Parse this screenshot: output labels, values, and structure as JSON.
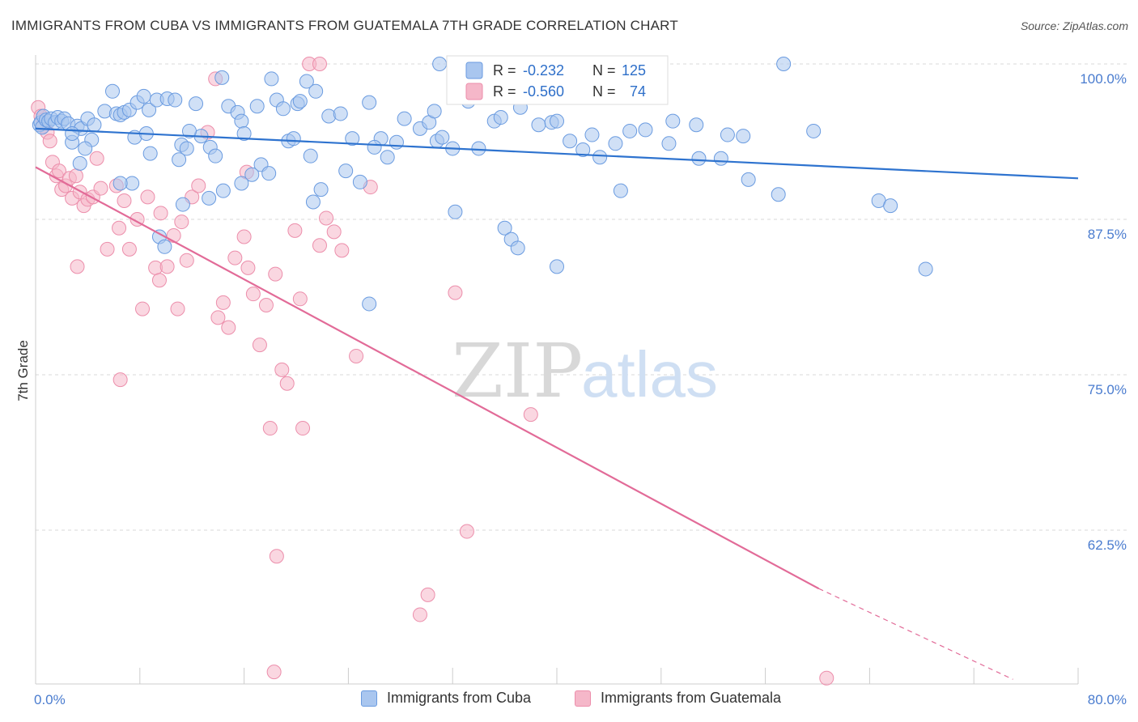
{
  "header": {
    "title": "IMMIGRANTS FROM CUBA VS IMMIGRANTS FROM GUATEMALA 7TH GRADE CORRELATION CHART",
    "source": "Source: ZipAtlas.com"
  },
  "watermark": {
    "part1": "ZIP",
    "part2": "atlas"
  },
  "colors": {
    "blue_fill": "#a9c6ef",
    "blue_stroke": "#6a9be0",
    "blue_line": "#2e73cf",
    "pink_fill": "#f5b7c9",
    "pink_stroke": "#ec8eab",
    "pink_line": "#e26b98",
    "grid": "#d9d9d9",
    "label_blue": "#4a7ccf"
  },
  "legend": {
    "rows": [
      {
        "r_label": "R =",
        "r_value": "-0.232",
        "n_label": "N =",
        "n_value": "125"
      },
      {
        "r_label": "R =",
        "r_value": "-0.560",
        "n_label": "N =",
        "n_value": "74"
      }
    ]
  },
  "chart_data": {
    "type": "scatter",
    "title": "IMMIGRANTS FROM CUBA VS IMMIGRANTS FROM GUATEMALA 7TH GRADE CORRELATION CHART",
    "xlabel": "",
    "ylabel": "7th Grade",
    "xlim": [
      0,
      80
    ],
    "ylim": [
      50.5,
      101
    ],
    "x_tick_labels": [
      "0.0%",
      "80.0%"
    ],
    "y_ticks": [
      62.5,
      75.0,
      87.5,
      100.0
    ],
    "y_tick_labels": [
      "62.5%",
      "75.0%",
      "87.5%",
      "100.0%"
    ],
    "grid": "horizontal dashed",
    "legend_position": "top-center",
    "series": [
      {
        "name": "Immigrants from Cuba",
        "R": -0.232,
        "N": 125,
        "trend": {
          "x": [
            0,
            80
          ],
          "y": [
            94.8,
            90.8
          ]
        },
        "points": [
          [
            0.3,
            95.1
          ],
          [
            0.4,
            95.3
          ],
          [
            0.5,
            94.9
          ],
          [
            0.6,
            95.8
          ],
          [
            0.8,
            95.5
          ],
          [
            1.0,
            95.4
          ],
          [
            1.2,
            95.6
          ],
          [
            1.5,
            95.3
          ],
          [
            1.7,
            95.7
          ],
          [
            2.0,
            95.4
          ],
          [
            2.2,
            95.6
          ],
          [
            2.5,
            95.2
          ],
          [
            2.8,
            93.7
          ],
          [
            3.2,
            95.0
          ],
          [
            3.5,
            94.8
          ],
          [
            4.0,
            95.6
          ],
          [
            4.3,
            93.9
          ],
          [
            3.8,
            93.2
          ],
          [
            3.4,
            92.0
          ],
          [
            4.5,
            95.1
          ],
          [
            5.3,
            96.2
          ],
          [
            5.9,
            97.8
          ],
          [
            6.2,
            96.0
          ],
          [
            6.5,
            95.9
          ],
          [
            6.8,
            96.1
          ],
          [
            7.2,
            96.3
          ],
          [
            7.8,
            96.9
          ],
          [
            8.3,
            97.4
          ],
          [
            8.7,
            96.3
          ],
          [
            7.6,
            94.1
          ],
          [
            8.5,
            94.4
          ],
          [
            7.4,
            90.4
          ],
          [
            9.3,
            97.1
          ],
          [
            10.1,
            97.2
          ],
          [
            10.7,
            97.1
          ],
          [
            11.2,
            93.5
          ],
          [
            11.6,
            93.2
          ],
          [
            11.0,
            92.3
          ],
          [
            12.3,
            96.8
          ],
          [
            12.7,
            94.2
          ],
          [
            13.4,
            93.3
          ],
          [
            13.8,
            92.6
          ],
          [
            14.3,
            98.9
          ],
          [
            14.8,
            96.6
          ],
          [
            15.5,
            96.1
          ],
          [
            15.8,
            95.4
          ],
          [
            16.0,
            94.4
          ],
          [
            17.0,
            96.6
          ],
          [
            17.3,
            91.9
          ],
          [
            16.6,
            91.1
          ],
          [
            17.9,
            91.2
          ],
          [
            18.1,
            98.8
          ],
          [
            18.5,
            97.1
          ],
          [
            19.0,
            96.4
          ],
          [
            19.4,
            93.8
          ],
          [
            19.8,
            94.0
          ],
          [
            20.1,
            96.8
          ],
          [
            20.3,
            97.0
          ],
          [
            20.8,
            98.6
          ],
          [
            21.1,
            92.6
          ],
          [
            21.5,
            97.8
          ],
          [
            21.3,
            88.9
          ],
          [
            22.5,
            95.8
          ],
          [
            23.4,
            96.0
          ],
          [
            23.8,
            91.4
          ],
          [
            24.3,
            94.0
          ],
          [
            24.9,
            90.5
          ],
          [
            25.6,
            96.9
          ],
          [
            26.5,
            94.0
          ],
          [
            27.0,
            92.5
          ],
          [
            27.7,
            93.7
          ],
          [
            28.3,
            95.6
          ],
          [
            29.5,
            94.8
          ],
          [
            30.2,
            95.3
          ],
          [
            30.6,
            96.2
          ],
          [
            30.8,
            93.8
          ],
          [
            31.2,
            94.1
          ],
          [
            32.0,
            93.2
          ],
          [
            32.2,
            88.1
          ],
          [
            34.0,
            93.2
          ],
          [
            35.2,
            95.4
          ],
          [
            35.7,
            95.7
          ],
          [
            36.0,
            86.8
          ],
          [
            36.5,
            85.9
          ],
          [
            37.2,
            96.5
          ],
          [
            38.6,
            95.1
          ],
          [
            39.6,
            95.3
          ],
          [
            40.0,
            95.4
          ],
          [
            41.0,
            93.8
          ],
          [
            42.0,
            93.1
          ],
          [
            42.7,
            94.3
          ],
          [
            43.3,
            92.5
          ],
          [
            44.5,
            93.6
          ],
          [
            45.6,
            94.6
          ],
          [
            46.8,
            94.7
          ],
          [
            48.6,
            93.6
          ],
          [
            48.9,
            95.4
          ],
          [
            50.7,
            95.1
          ],
          [
            50.9,
            92.4
          ],
          [
            52.6,
            92.4
          ],
          [
            53.1,
            94.3
          ],
          [
            54.3,
            94.2
          ],
          [
            54.7,
            90.7
          ],
          [
            57.0,
            89.5
          ],
          [
            59.7,
            94.6
          ],
          [
            64.7,
            89.0
          ],
          [
            65.6,
            88.6
          ],
          [
            68.3,
            83.5
          ],
          [
            44.9,
            89.8
          ],
          [
            40.0,
            83.7
          ],
          [
            37.0,
            85.2
          ],
          [
            25.6,
            80.7
          ],
          [
            13.3,
            89.2
          ],
          [
            9.5,
            86.1
          ],
          [
            9.9,
            85.3
          ],
          [
            15.8,
            90.4
          ],
          [
            14.4,
            89.8
          ],
          [
            11.3,
            88.7
          ],
          [
            6.5,
            90.4
          ],
          [
            2.8,
            94.4
          ],
          [
            8.8,
            92.8
          ],
          [
            11.8,
            94.6
          ],
          [
            31.0,
            100.0
          ],
          [
            57.4,
            100.0
          ],
          [
            26.0,
            93.3
          ],
          [
            33.2,
            97.0
          ],
          [
            21.9,
            89.9
          ]
        ]
      },
      {
        "name": "Immigrants from Guatemala",
        "R": -0.56,
        "N": 74,
        "trend": {
          "x": [
            0,
            60.1
          ],
          "y": [
            91.7,
            57.8
          ]
        },
        "trend_dashed": {
          "x": [
            60.1,
            75
          ],
          "y": [
            57.8,
            50.5
          ]
        },
        "points": [
          [
            0.2,
            96.5
          ],
          [
            0.4,
            95.8
          ],
          [
            0.6,
            95.0
          ],
          [
            0.9,
            94.5
          ],
          [
            1.1,
            93.8
          ],
          [
            1.3,
            92.1
          ],
          [
            1.6,
            91.0
          ],
          [
            1.8,
            91.4
          ],
          [
            2.0,
            89.9
          ],
          [
            2.3,
            90.2
          ],
          [
            2.6,
            90.8
          ],
          [
            2.8,
            89.2
          ],
          [
            3.1,
            91.0
          ],
          [
            3.4,
            89.7
          ],
          [
            3.7,
            88.6
          ],
          [
            4.0,
            89.1
          ],
          [
            4.4,
            89.3
          ],
          [
            4.7,
            92.4
          ],
          [
            5.0,
            90.0
          ],
          [
            5.5,
            85.1
          ],
          [
            6.2,
            90.2
          ],
          [
            6.4,
            86.8
          ],
          [
            6.8,
            89.0
          ],
          [
            7.2,
            85.1
          ],
          [
            7.8,
            87.5
          ],
          [
            8.2,
            80.3
          ],
          [
            8.6,
            89.3
          ],
          [
            9.2,
            83.6
          ],
          [
            9.6,
            88.0
          ],
          [
            10.1,
            83.7
          ],
          [
            10.6,
            86.2
          ],
          [
            10.9,
            80.3
          ],
          [
            11.2,
            87.3
          ],
          [
            11.6,
            84.2
          ],
          [
            12.0,
            89.3
          ],
          [
            12.5,
            90.2
          ],
          [
            13.2,
            94.5
          ],
          [
            14.0,
            79.6
          ],
          [
            14.4,
            80.8
          ],
          [
            14.8,
            78.8
          ],
          [
            15.3,
            84.4
          ],
          [
            16.0,
            86.1
          ],
          [
            16.3,
            83.6
          ],
          [
            16.7,
            81.5
          ],
          [
            17.2,
            77.4
          ],
          [
            17.7,
            80.6
          ],
          [
            18.0,
            70.7
          ],
          [
            18.4,
            83.1
          ],
          [
            18.5,
            60.4
          ],
          [
            18.9,
            75.4
          ],
          [
            19.3,
            74.3
          ],
          [
            19.9,
            86.6
          ],
          [
            20.3,
            81.1
          ],
          [
            20.5,
            70.7
          ],
          [
            21.0,
            100.0
          ],
          [
            21.8,
            85.4
          ],
          [
            22.3,
            87.6
          ],
          [
            22.9,
            86.5
          ],
          [
            23.5,
            85.0
          ],
          [
            24.6,
            76.5
          ],
          [
            25.7,
            90.1
          ],
          [
            29.5,
            55.7
          ],
          [
            30.1,
            57.3
          ],
          [
            32.2,
            81.6
          ],
          [
            33.1,
            62.4
          ],
          [
            38.0,
            71.8
          ],
          [
            60.7,
            50.6
          ],
          [
            13.8,
            98.8
          ],
          [
            21.8,
            100.0
          ],
          [
            3.2,
            83.7
          ],
          [
            6.5,
            74.6
          ],
          [
            9.5,
            82.6
          ],
          [
            16.2,
            91.3
          ],
          [
            18.3,
            51.1
          ]
        ]
      }
    ]
  },
  "bottom_legend": {
    "items": [
      {
        "label": "Immigrants from Cuba"
      },
      {
        "label": "Immigrants from Guatemala"
      }
    ]
  }
}
